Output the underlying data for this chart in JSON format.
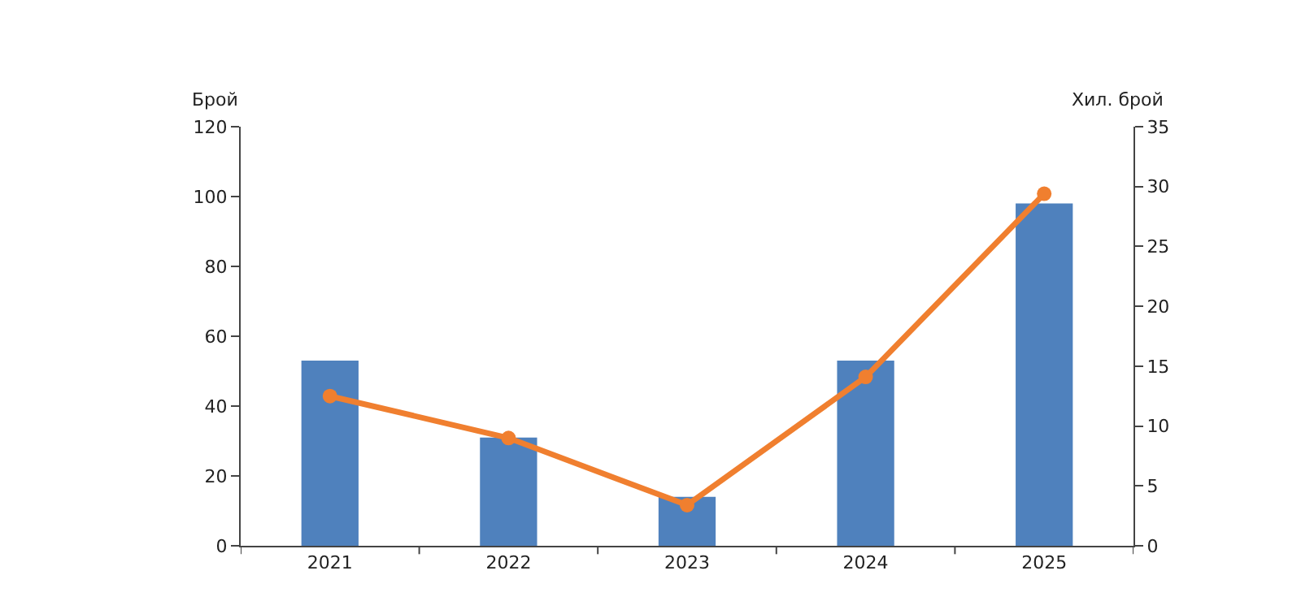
{
  "chart_data": {
    "type": "bar",
    "ylabel": "Брой",
    "y2label": "Хил. брой",
    "categories": [
      "2021",
      "2022",
      "2023",
      "2024",
      "2025"
    ],
    "series": [
      {
        "color": "#4f81bd",
        "values": [
          53,
          31,
          14,
          53,
          98
        ]
      },
      {
        "type": "line",
        "axis": "y2",
        "color": "#f07f2f",
        "marker": "circle",
        "values": [
          12.5,
          9,
          3.4,
          14.1,
          29.4
        ]
      }
    ],
    "ylim": [
      0,
      120
    ],
    "yticks": [
      0,
      20,
      40,
      60,
      80,
      100,
      120
    ],
    "y2lim": [
      0,
      35
    ],
    "y2ticks": [
      0,
      5,
      10,
      15,
      20,
      25,
      30,
      35
    ],
    "grid": false
  }
}
